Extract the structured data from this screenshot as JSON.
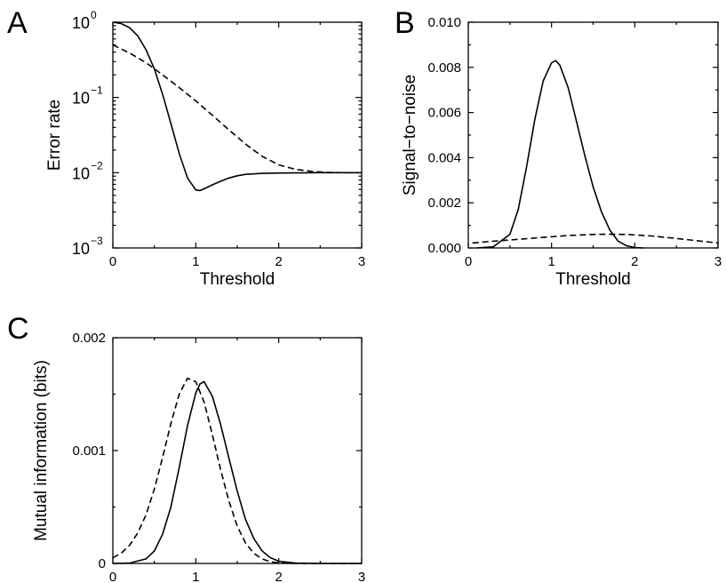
{
  "chart_data": [
    {
      "panel": "A",
      "type": "line",
      "xlabel": "Threshold",
      "ylabel": "Error rate",
      "xlim": [
        0,
        3
      ],
      "ylim": [
        0.001,
        1
      ],
      "yscale": "log",
      "xticks": [
        "0",
        "1",
        "2",
        "3"
      ],
      "yticks": [
        {
          "value": 1,
          "base": "10",
          "exp": "0"
        },
        {
          "value": 0.1,
          "base": "10",
          "exp": "−1"
        },
        {
          "value": 0.01,
          "base": "10",
          "exp": "−2"
        },
        {
          "value": 0.001,
          "base": "10",
          "exp": "−3"
        }
      ],
      "series": [
        {
          "style": "solid",
          "x": [
            0,
            0.1,
            0.2,
            0.3,
            0.4,
            0.5,
            0.6,
            0.7,
            0.8,
            0.9,
            1.0,
            1.05,
            1.1,
            1.2,
            1.3,
            1.4,
            1.5,
            1.6,
            1.8,
            2.0,
            2.5,
            3.0
          ],
          "y": [
            1.0,
            0.96,
            0.85,
            0.66,
            0.43,
            0.24,
            0.11,
            0.045,
            0.018,
            0.0085,
            0.0059,
            0.0058,
            0.0061,
            0.0069,
            0.0077,
            0.0085,
            0.0091,
            0.0095,
            0.0098,
            0.0099,
            0.01,
            0.01
          ]
        },
        {
          "style": "dashed",
          "x": [
            0,
            0.2,
            0.4,
            0.6,
            0.8,
            1.0,
            1.2,
            1.4,
            1.6,
            1.8,
            2.0,
            2.2,
            2.4,
            2.6,
            2.8,
            3.0
          ],
          "y": [
            0.5,
            0.39,
            0.29,
            0.2,
            0.135,
            0.09,
            0.058,
            0.037,
            0.024,
            0.0165,
            0.0127,
            0.0111,
            0.0104,
            0.0101,
            0.01,
            0.01
          ]
        }
      ]
    },
    {
      "panel": "B",
      "type": "line",
      "xlabel": "Threshold",
      "ylabel": "Signal−to−noise",
      "xlim": [
        0,
        3
      ],
      "ylim": [
        0,
        0.01
      ],
      "xticks": [
        "0",
        "1",
        "2",
        "3"
      ],
      "yticks": [
        "0.000",
        "0.002",
        "0.004",
        "0.006",
        "0.008",
        "0.010"
      ],
      "series": [
        {
          "style": "solid",
          "x": [
            0.1,
            0.3,
            0.5,
            0.6,
            0.7,
            0.8,
            0.9,
            1.0,
            1.05,
            1.1,
            1.2,
            1.3,
            1.4,
            1.5,
            1.6,
            1.7,
            1.8,
            1.9,
            2.0,
            2.1
          ],
          "y": [
            0.0,
            5e-05,
            0.0006,
            0.0017,
            0.0036,
            0.0057,
            0.0074,
            0.0082,
            0.0083,
            0.0081,
            0.0071,
            0.0056,
            0.0041,
            0.0027,
            0.0016,
            0.0008,
            0.0003,
            0.0001,
            2e-05,
            0.0
          ]
        },
        {
          "style": "dashed",
          "x": [
            0.05,
            0.3,
            0.6,
            0.9,
            1.2,
            1.5,
            1.7,
            1.9,
            2.2,
            2.5,
            2.8,
            3.0
          ],
          "y": [
            0.00022,
            0.0003,
            0.00038,
            0.00047,
            0.00055,
            0.0006,
            0.00061,
            0.0006,
            0.00053,
            0.00042,
            0.0003,
            0.00022
          ]
        }
      ]
    },
    {
      "panel": "C",
      "type": "line",
      "xlabel": "Threshold",
      "ylabel": "Mutual information (bits)",
      "xlim": [
        0,
        3
      ],
      "ylim": [
        0,
        0.002
      ],
      "xticks": [
        "0",
        "1",
        "2",
        "3"
      ],
      "yticks": [
        "0",
        "0.001",
        "0.002"
      ],
      "series": [
        {
          "style": "solid",
          "x": [
            0,
            0.2,
            0.4,
            0.5,
            0.6,
            0.7,
            0.8,
            0.9,
            1.0,
            1.05,
            1.1,
            1.2,
            1.3,
            1.4,
            1.5,
            1.6,
            1.7,
            1.8,
            1.9,
            2.0,
            2.2,
            2.5,
            3.0
          ],
          "y": [
            0.0,
            3e-06,
            4e-05,
            0.00011,
            0.00026,
            0.0005,
            0.00085,
            0.00122,
            0.00151,
            0.00159,
            0.00161,
            0.00148,
            0.00123,
            0.00093,
            0.00064,
            0.00039,
            0.00022,
            0.00011,
            5e-05,
            2e-05,
            3e-06,
            0.0,
            0.0
          ]
        },
        {
          "style": "dashed",
          "x": [
            0,
            0.1,
            0.2,
            0.3,
            0.4,
            0.5,
            0.6,
            0.7,
            0.8,
            0.9,
            1.0,
            1.1,
            1.2,
            1.3,
            1.4,
            1.5,
            1.6,
            1.7,
            1.8,
            1.9,
            2.0,
            2.2,
            2.5,
            3.0
          ],
          "y": [
            5e-05,
            9e-05,
            0.00016,
            0.00027,
            0.00043,
            0.00066,
            0.00094,
            0.00124,
            0.0015,
            0.00164,
            0.00161,
            0.00143,
            0.00114,
            0.00083,
            0.00055,
            0.00033,
            0.00018,
            9e-05,
            4e-05,
            1.5e-05,
            5e-06,
            0.0,
            0.0,
            0.0
          ]
        }
      ]
    }
  ]
}
